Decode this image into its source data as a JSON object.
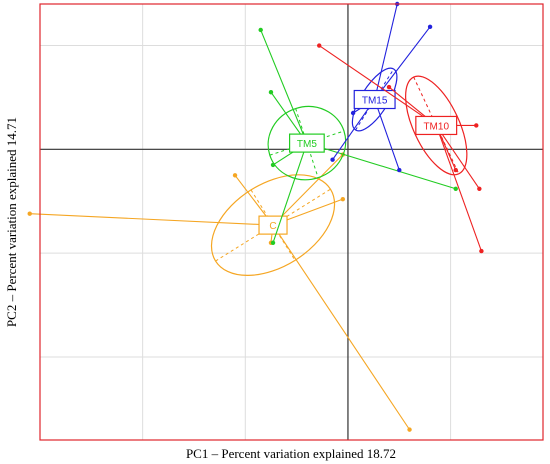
{
  "chart_data": {
    "type": "scatter",
    "title": "",
    "xlabel": "PC1 – Percent variation explained 18.72",
    "ylabel": "PC2 – Percent variation explained 14.71",
    "xlim": [
      -3.0,
      1.9
    ],
    "ylim": [
      -2.8,
      1.4
    ],
    "x_gridlines": [
      -3,
      -2,
      -1,
      0,
      1
    ],
    "y_gridlines": [
      1,
      0,
      -1,
      -2
    ],
    "reference_lines": {
      "x": 0,
      "y": 0
    },
    "grid": true,
    "frame_color": "#e0242c",
    "series": [
      {
        "name": "C",
        "color": "#f5a623",
        "centroid": [
          -0.73,
          -0.73
        ],
        "ellipse": {
          "rx": 0.66,
          "ry": 0.4,
          "angle_deg": 32
        },
        "points": [
          [
            -3.1,
            -0.62
          ],
          [
            -1.1,
            -0.25
          ],
          [
            -0.75,
            -0.9
          ],
          [
            -0.05,
            -0.05
          ],
          [
            -0.05,
            -0.48
          ],
          [
            0.6,
            -2.7
          ]
        ]
      },
      {
        "name": "TM5",
        "color": "#22cc22",
        "centroid": [
          -0.4,
          0.06
        ],
        "ellipse": {
          "rx": 0.38,
          "ry": 0.35,
          "angle_deg": 18
        },
        "points": [
          [
            -0.85,
            1.15
          ],
          [
            -0.75,
            0.55
          ],
          [
            -0.73,
            -0.15
          ],
          [
            -0.35,
            0.12
          ],
          [
            1.05,
            -0.38
          ],
          [
            -0.73,
            -0.9
          ]
        ]
      },
      {
        "name": "TM15",
        "color": "#2222dd",
        "centroid": [
          0.26,
          0.48
        ],
        "ellipse": {
          "rx": 0.35,
          "ry": 0.13,
          "angle_deg": 58
        },
        "points": [
          [
            0.48,
            1.4
          ],
          [
            0.8,
            1.18
          ],
          [
            0.5,
            -0.2
          ],
          [
            0.05,
            0.35
          ],
          [
            -0.15,
            -0.1
          ]
        ]
      },
      {
        "name": "TM10",
        "color": "#ee2222",
        "centroid": [
          0.86,
          0.23
        ],
        "ellipse": {
          "rx": 0.52,
          "ry": 0.22,
          "angle_deg": -65
        },
        "points": [
          [
            -0.28,
            1.0
          ],
          [
            0.4,
            0.6
          ],
          [
            1.25,
            0.23
          ],
          [
            1.05,
            -0.2
          ],
          [
            1.28,
            -0.38
          ],
          [
            1.3,
            -0.98
          ]
        ]
      }
    ]
  }
}
